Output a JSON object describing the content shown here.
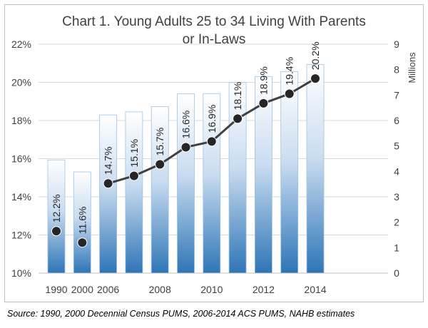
{
  "chart_data": {
    "type": "bar+line",
    "title_lines": [
      "Chart 1. Young Adults 25 to 34 Living With Parents",
      "or In-Laws"
    ],
    "x": [
      1990,
      2000,
      2006,
      2007,
      2008,
      2009,
      2010,
      2011,
      2012,
      2013,
      2014
    ],
    "x_tick_labels": [
      "1990",
      "2000",
      "2006",
      "2008",
      "2010",
      "2012",
      "2014"
    ],
    "x_tick_values": [
      1990,
      2000,
      2006,
      2008,
      2010,
      2012,
      2014
    ],
    "bars": {
      "name": "Millions (right axis)",
      "values": [
        4.45,
        3.98,
        6.22,
        6.34,
        6.55,
        7.05,
        7.06,
        7.49,
        7.73,
        7.92,
        8.2
      ]
    },
    "line": {
      "name": "Percent (left axis)",
      "values": [
        12.2,
        11.6,
        14.7,
        15.1,
        15.7,
        16.6,
        16.9,
        18.1,
        18.9,
        19.4,
        20.2
      ],
      "labels": [
        "12.2%",
        "11.6%",
        "14.7%",
        "15.1%",
        "15.7%",
        "16.6%",
        "16.9%",
        "18.1%",
        "18.9%",
        "19.4%",
        "20.2%"
      ],
      "connected_from_index": 2
    },
    "y_left": {
      "range": [
        10,
        22
      ],
      "ticks": [
        10,
        12,
        14,
        16,
        18,
        20,
        22
      ],
      "tick_labels": [
        "10%",
        "12%",
        "14%",
        "16%",
        "18%",
        "20%",
        "22%"
      ]
    },
    "y_right": {
      "label": "Millions",
      "range": [
        0,
        9
      ],
      "ticks": [
        0,
        1,
        2,
        3,
        4,
        5,
        6,
        7,
        8,
        9
      ],
      "tick_labels": [
        "0",
        "1",
        "2",
        "3",
        "4",
        "5",
        "6",
        "7",
        "8",
        "9"
      ]
    },
    "grid": true,
    "colors": {
      "bar_top": "#ffffff",
      "bar_bottom": "#2e75b6",
      "bar_edge": "#9dc3e6",
      "line": "#404040",
      "marker": "#262626",
      "grid": "#d9d9d9",
      "text": "#404040"
    }
  },
  "source_note": "Source: 1990, 2000 Decennial Census PUMS, 2006-2014 ACS PUMS, NAHB estimates"
}
